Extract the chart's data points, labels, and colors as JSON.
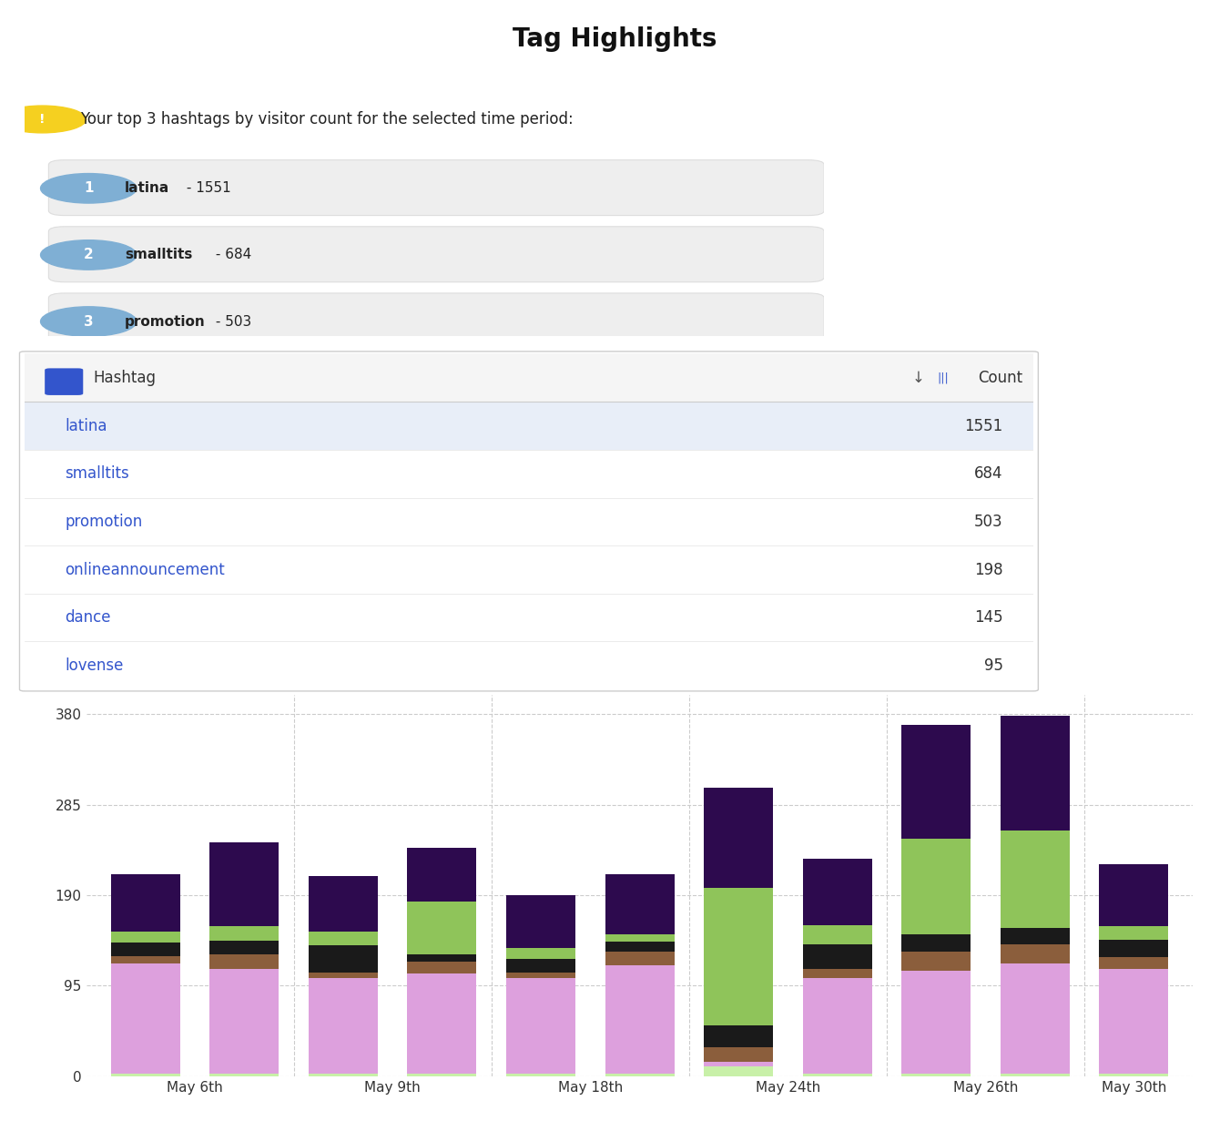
{
  "title": "Tag Highlights",
  "top3_text": "Your top 3 hashtags by visitor count for the selected time period:",
  "top3": [
    {
      "rank": 1,
      "tag": "latina",
      "count": 1551
    },
    {
      "rank": 2,
      "tag": "smalltits",
      "count": 684
    },
    {
      "rank": 3,
      "tag": "promotion",
      "count": 503
    }
  ],
  "table_rows": [
    {
      "tag": "latina",
      "count": 1551
    },
    {
      "tag": "smalltits",
      "count": 684
    },
    {
      "tag": "promotion",
      "count": 503
    },
    {
      "tag": "onlineannouncement",
      "count": 198
    },
    {
      "tag": "dance",
      "count": 145
    },
    {
      "tag": "lovense",
      "count": 95
    }
  ],
  "bar_x_labels": [
    "May 6th",
    "May 9th",
    "May 18th",
    "May 24th",
    "May 26th",
    "May 30th"
  ],
  "colors": {
    "light_purple": "#dda0dd",
    "light_green": "#8fc45a",
    "dark_purple": "#2d0a4e",
    "black": "#1a1a1a",
    "brown": "#8b5e3c",
    "very_light_green": "#c8f0a8"
  },
  "bars_data": [
    [
      3,
      115,
      8,
      14,
      12,
      60
    ],
    [
      3,
      110,
      15,
      14,
      15,
      88
    ],
    [
      3,
      100,
      6,
      28,
      15,
      58
    ],
    [
      3,
      105,
      12,
      8,
      55,
      57
    ],
    [
      3,
      100,
      6,
      14,
      12,
      55
    ],
    [
      3,
      113,
      15,
      10,
      8,
      63
    ],
    [
      10,
      5,
      15,
      23,
      145,
      105
    ],
    [
      3,
      100,
      10,
      25,
      20,
      70
    ],
    [
      3,
      108,
      20,
      18,
      100,
      120
    ],
    [
      3,
      115,
      20,
      18,
      102,
      120
    ],
    [
      3,
      110,
      12,
      18,
      14,
      65
    ]
  ],
  "yticks": [
    0,
    95,
    190,
    285,
    380
  ],
  "background_color": "#ffffff",
  "table_bg_highlight": "#e8eef8",
  "link_color": "#3355cc",
  "badge_color": "#7fafd4"
}
